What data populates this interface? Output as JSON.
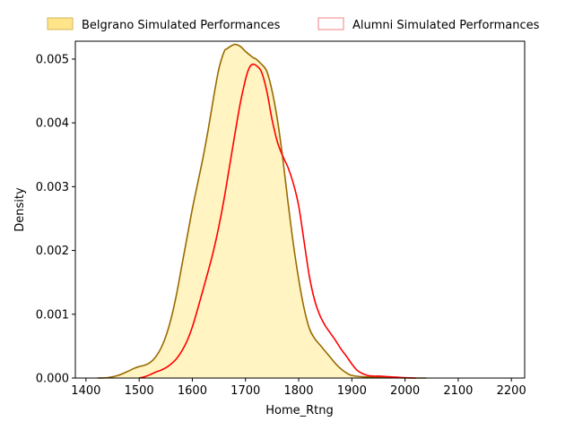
{
  "chart_data": {
    "type": "area",
    "xlabel": "Home_Rtng",
    "ylabel": "Density",
    "xlim": [
      1380,
      2225
    ],
    "ylim": [
      0,
      0.00528
    ],
    "xticks": [
      1400,
      1500,
      1600,
      1700,
      1800,
      1900,
      2000,
      2100,
      2200
    ],
    "xtick_labels": [
      "1400",
      "1500",
      "1600",
      "1700",
      "1800",
      "1900",
      "2000",
      "2100",
      "2200"
    ],
    "yticks": [
      0,
      0.001,
      0.002,
      0.003,
      0.004,
      0.005
    ],
    "ytick_labels": [
      "0.000",
      "0.001",
      "0.002",
      "0.003",
      "0.004",
      "0.005"
    ],
    "legend_placement": "top-center",
    "series": [
      {
        "name": "Belgrano Simulated Performances",
        "style": "filled",
        "line_color": "#996a00",
        "fill_color": "#fff4c2",
        "legend_fill": "#ffe58a",
        "legend_edge": "#d4b45a",
        "points": [
          [
            1422,
            0
          ],
          [
            1440,
            5e-06
          ],
          [
            1460,
            4e-05
          ],
          [
            1480,
            0.00011
          ],
          [
            1490,
            0.00015
          ],
          [
            1500,
            0.00018
          ],
          [
            1510,
            0.0002
          ],
          [
            1520,
            0.00024
          ],
          [
            1530,
            0.00032
          ],
          [
            1540,
            0.00045
          ],
          [
            1550,
            0.00065
          ],
          [
            1560,
            0.00093
          ],
          [
            1570,
            0.0013
          ],
          [
            1580,
            0.00175
          ],
          [
            1590,
            0.0022
          ],
          [
            1600,
            0.00265
          ],
          [
            1610,
            0.00305
          ],
          [
            1620,
            0.00345
          ],
          [
            1630,
            0.0039
          ],
          [
            1640,
            0.0044
          ],
          [
            1650,
            0.00485
          ],
          [
            1660,
            0.00512
          ],
          [
            1665,
            0.00516
          ],
          [
            1670,
            0.00519
          ],
          [
            1680,
            0.00523
          ],
          [
            1690,
            0.0052
          ],
          [
            1700,
            0.00512
          ],
          [
            1710,
            0.00505
          ],
          [
            1715,
            0.00502
          ],
          [
            1720,
            0.005
          ],
          [
            1730,
            0.00492
          ],
          [
            1740,
            0.00481
          ],
          [
            1750,
            0.0045
          ],
          [
            1760,
            0.00405
          ],
          [
            1770,
            0.00345
          ],
          [
            1780,
            0.00275
          ],
          [
            1790,
            0.0021
          ],
          [
            1800,
            0.00155
          ],
          [
            1810,
            0.0011
          ],
          [
            1820,
            0.00078
          ],
          [
            1830,
            0.00062
          ],
          [
            1840,
            0.00052
          ],
          [
            1850,
            0.00042
          ],
          [
            1860,
            0.00032
          ],
          [
            1870,
            0.00022
          ],
          [
            1880,
            0.00014
          ],
          [
            1890,
            8e-05
          ],
          [
            1900,
            4e-05
          ],
          [
            1920,
            2e-05
          ],
          [
            1940,
            1.5e-05
          ],
          [
            1960,
            1e-05
          ],
          [
            1980,
            5e-06
          ],
          [
            2000,
            2e-06
          ],
          [
            2020,
            0
          ],
          [
            2040,
            0
          ]
        ]
      },
      {
        "name": "Alumni Simulated Performances",
        "style": "line",
        "line_color": "#ff0000",
        "legend_fill": "#ffffff",
        "legend_edge": "#f08080",
        "points": [
          [
            1500,
            0
          ],
          [
            1510,
            2e-05
          ],
          [
            1520,
            5e-05
          ],
          [
            1530,
            9e-05
          ],
          [
            1540,
            0.00012
          ],
          [
            1550,
            0.00016
          ],
          [
            1560,
            0.00022
          ],
          [
            1570,
            0.0003
          ],
          [
            1580,
            0.00042
          ],
          [
            1590,
            0.00058
          ],
          [
            1600,
            0.0008
          ],
          [
            1610,
            0.00108
          ],
          [
            1620,
            0.00138
          ],
          [
            1630,
            0.00168
          ],
          [
            1640,
            0.002
          ],
          [
            1650,
            0.00238
          ],
          [
            1660,
            0.00282
          ],
          [
            1670,
            0.00332
          ],
          [
            1680,
            0.00382
          ],
          [
            1690,
            0.0043
          ],
          [
            1700,
            0.00468
          ],
          [
            1705,
            0.00482
          ],
          [
            1710,
            0.0049
          ],
          [
            1715,
            0.00492
          ],
          [
            1720,
            0.0049
          ],
          [
            1730,
            0.0048
          ],
          [
            1740,
            0.0045
          ],
          [
            1750,
            0.00405
          ],
          [
            1760,
            0.0037
          ],
          [
            1770,
            0.00348
          ],
          [
            1780,
            0.0033
          ],
          [
            1790,
            0.00305
          ],
          [
            1800,
            0.0027
          ],
          [
            1810,
            0.00215
          ],
          [
            1820,
            0.0016
          ],
          [
            1830,
            0.00122
          ],
          [
            1840,
            0.00098
          ],
          [
            1850,
            0.00082
          ],
          [
            1860,
            0.0007
          ],
          [
            1870,
            0.00058
          ],
          [
            1880,
            0.00045
          ],
          [
            1890,
            0.00034
          ],
          [
            1900,
            0.00022
          ],
          [
            1910,
            0.00012
          ],
          [
            1920,
            7e-05
          ],
          [
            1930,
            4e-05
          ],
          [
            1940,
            3e-05
          ],
          [
            1950,
            3e-05
          ],
          [
            1960,
            2.5e-05
          ],
          [
            1970,
            2e-05
          ],
          [
            1980,
            1.5e-05
          ],
          [
            1990,
            1e-05
          ],
          [
            2000,
            5e-06
          ],
          [
            2020,
            0
          ]
        ]
      }
    ]
  }
}
